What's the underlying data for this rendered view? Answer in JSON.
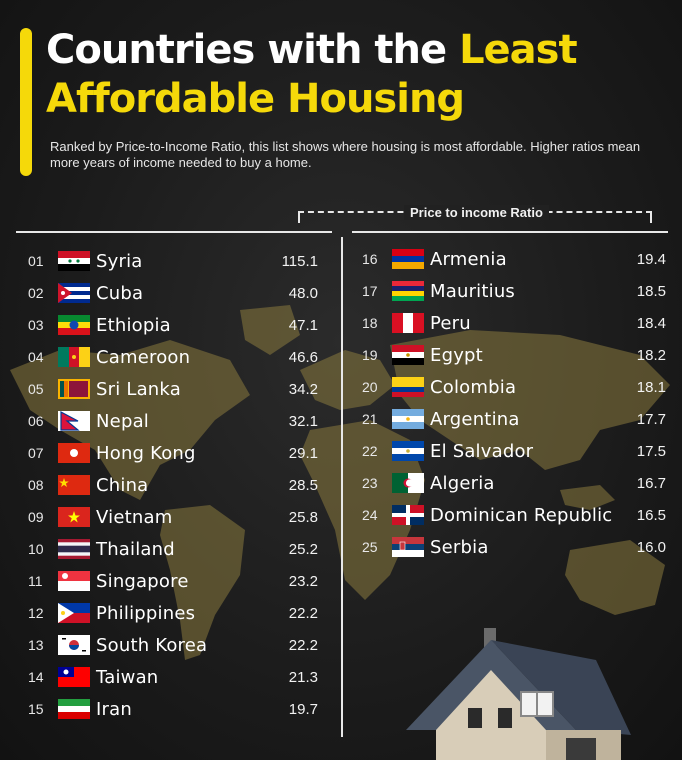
{
  "header": {
    "title_line1": "Countries with the ",
    "title_accent1": "Least",
    "title_accent2": "Affordable Housing",
    "subtitle": "Ranked by Price-to-Income Ratio, this list shows where housing is most affordable. Higher ratios mean more years of income needed to buy a home.",
    "column_label": "Price to income Ratio"
  },
  "colors": {
    "accent": "#f5d90a",
    "background": "#1b1b1b",
    "map": "#8a7a3e"
  },
  "chart_data": {
    "type": "table",
    "title": "Countries with the Least Affordable Housing",
    "subtitle": "Ranked by Price-to-Income Ratio, this list shows where housing is most affordable. Higher ratios mean more years of income needed to buy a home.",
    "value_label": "Price to income Ratio",
    "rows": [
      {
        "rank": "01",
        "country": "Syria",
        "value": "115.1",
        "flag": "syria-flag"
      },
      {
        "rank": "02",
        "country": "Cuba",
        "value": "48.0",
        "flag": "cuba-flag"
      },
      {
        "rank": "03",
        "country": "Ethiopia",
        "value": "47.1",
        "flag": "ethiopia-flag"
      },
      {
        "rank": "04",
        "country": "Cameroon",
        "value": "46.6",
        "flag": "cameroon-flag"
      },
      {
        "rank": "05",
        "country": "Sri Lanka",
        "value": "34.2",
        "flag": "sri-lanka-flag"
      },
      {
        "rank": "06",
        "country": "Nepal",
        "value": "32.1",
        "flag": "nepal-flag"
      },
      {
        "rank": "07",
        "country": "Hong Kong",
        "value": "29.1",
        "flag": "hong-kong-flag"
      },
      {
        "rank": "08",
        "country": "China",
        "value": "28.5",
        "flag": "china-flag"
      },
      {
        "rank": "09",
        "country": "Vietnam",
        "value": "25.8",
        "flag": "vietnam-flag"
      },
      {
        "rank": "10",
        "country": "Thailand",
        "value": "25.2",
        "flag": "thailand-flag"
      },
      {
        "rank": "11",
        "country": "Singapore",
        "value": "23.2",
        "flag": "singapore-flag"
      },
      {
        "rank": "12",
        "country": "Philippines",
        "value": "22.2",
        "flag": "philippines-flag"
      },
      {
        "rank": "13",
        "country": "South Korea",
        "value": "22.2",
        "flag": "south-korea-flag"
      },
      {
        "rank": "14",
        "country": "Taiwan",
        "value": "21.3",
        "flag": "taiwan-flag"
      },
      {
        "rank": "15",
        "country": "Iran",
        "value": "19.7",
        "flag": "iran-flag"
      },
      {
        "rank": "16",
        "country": "Armenia",
        "value": "19.4",
        "flag": "armenia-flag"
      },
      {
        "rank": "17",
        "country": "Mauritius",
        "value": "18.5",
        "flag": "mauritius-flag"
      },
      {
        "rank": "18",
        "country": "Peru",
        "value": "18.4",
        "flag": "peru-flag"
      },
      {
        "rank": "19",
        "country": "Egypt",
        "value": "18.2",
        "flag": "egypt-flag"
      },
      {
        "rank": "20",
        "country": "Colombia",
        "value": "18.1",
        "flag": "colombia-flag"
      },
      {
        "rank": "21",
        "country": "Argentina",
        "value": "17.7",
        "flag": "argentina-flag"
      },
      {
        "rank": "22",
        "country": "El Salvador",
        "value": "17.5",
        "flag": "el-salvador-flag"
      },
      {
        "rank": "23",
        "country": "Algeria",
        "value": "16.7",
        "flag": "algeria-flag"
      },
      {
        "rank": "24",
        "country": "Dominican Republic",
        "value": "16.5",
        "flag": "dominican-republic-flag"
      },
      {
        "rank": "25",
        "country": "Serbia",
        "value": "16.0",
        "flag": "serbia-flag"
      }
    ]
  }
}
